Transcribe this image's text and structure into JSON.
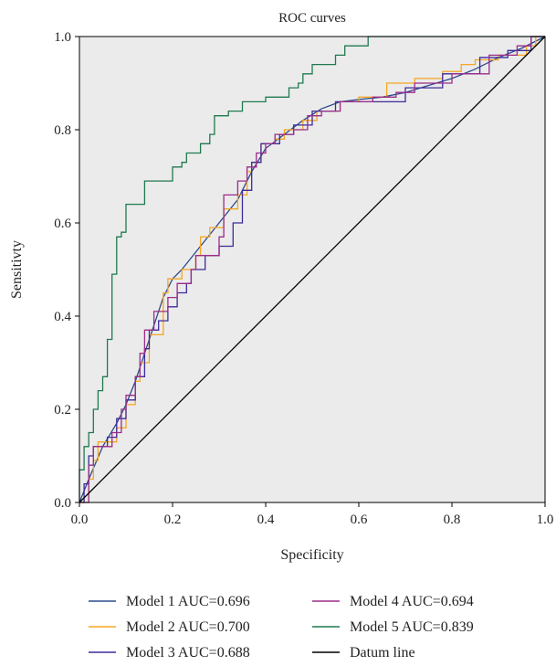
{
  "chart_data": {
    "type": "line",
    "title": "ROC curves",
    "xlabel": "Specificity",
    "ylabel": "Sensitivty",
    "xlim": [
      0.0,
      1.0
    ],
    "ylim": [
      0.0,
      1.0
    ],
    "xticks": [
      "0.0",
      "0.2",
      "0.4",
      "0.6",
      "0.8",
      "1.0"
    ],
    "yticks": [
      "0.0",
      "0.2",
      "0.4",
      "0.6",
      "0.8",
      "1.0"
    ],
    "grid": false,
    "plot_background": "#ebebeb",
    "legend_position": "bottom",
    "series": [
      {
        "name": "Model 1 AUC=0.696",
        "color": "#2b4a8c",
        "step": false,
        "points": [
          [
            0,
            0
          ],
          [
            0.02,
            0.05
          ],
          [
            0.05,
            0.12
          ],
          [
            0.08,
            0.17
          ],
          [
            0.1,
            0.21
          ],
          [
            0.12,
            0.26
          ],
          [
            0.14,
            0.32
          ],
          [
            0.16,
            0.38
          ],
          [
            0.18,
            0.44
          ],
          [
            0.2,
            0.48
          ],
          [
            0.22,
            0.5
          ],
          [
            0.26,
            0.55
          ],
          [
            0.3,
            0.6
          ],
          [
            0.34,
            0.65
          ],
          [
            0.37,
            0.71
          ],
          [
            0.4,
            0.76
          ],
          [
            0.44,
            0.79
          ],
          [
            0.48,
            0.82
          ],
          [
            0.52,
            0.845
          ],
          [
            0.56,
            0.86
          ],
          [
            0.6,
            0.865
          ],
          [
            0.65,
            0.87
          ],
          [
            0.7,
            0.88
          ],
          [
            0.75,
            0.895
          ],
          [
            0.8,
            0.91
          ],
          [
            0.85,
            0.93
          ],
          [
            0.9,
            0.955
          ],
          [
            0.95,
            0.975
          ],
          [
            1,
            1
          ]
        ]
      },
      {
        "name": "Model 2 AUC=0.700",
        "color": "#f5a623",
        "step": true,
        "points": [
          [
            0,
            0
          ],
          [
            0.02,
            0
          ],
          [
            0.02,
            0.05
          ],
          [
            0.03,
            0.05
          ],
          [
            0.03,
            0.09
          ],
          [
            0.04,
            0.09
          ],
          [
            0.04,
            0.13
          ],
          [
            0.08,
            0.13
          ],
          [
            0.08,
            0.16
          ],
          [
            0.1,
            0.16
          ],
          [
            0.1,
            0.21
          ],
          [
            0.12,
            0.21
          ],
          [
            0.12,
            0.26
          ],
          [
            0.13,
            0.26
          ],
          [
            0.13,
            0.3
          ],
          [
            0.15,
            0.3
          ],
          [
            0.15,
            0.36
          ],
          [
            0.18,
            0.36
          ],
          [
            0.18,
            0.45
          ],
          [
            0.19,
            0.45
          ],
          [
            0.19,
            0.48
          ],
          [
            0.22,
            0.48
          ],
          [
            0.22,
            0.5
          ],
          [
            0.25,
            0.5
          ],
          [
            0.25,
            0.53
          ],
          [
            0.26,
            0.53
          ],
          [
            0.26,
            0.57
          ],
          [
            0.28,
            0.57
          ],
          [
            0.28,
            0.59
          ],
          [
            0.31,
            0.59
          ],
          [
            0.31,
            0.63
          ],
          [
            0.34,
            0.63
          ],
          [
            0.34,
            0.66
          ],
          [
            0.36,
            0.66
          ],
          [
            0.36,
            0.71
          ],
          [
            0.37,
            0.71
          ],
          [
            0.37,
            0.73
          ],
          [
            0.39,
            0.73
          ],
          [
            0.39,
            0.77
          ],
          [
            0.42,
            0.77
          ],
          [
            0.42,
            0.78
          ],
          [
            0.44,
            0.78
          ],
          [
            0.44,
            0.8
          ],
          [
            0.48,
            0.8
          ],
          [
            0.48,
            0.82
          ],
          [
            0.51,
            0.82
          ],
          [
            0.51,
            0.84
          ],
          [
            0.56,
            0.84
          ],
          [
            0.56,
            0.86
          ],
          [
            0.6,
            0.86
          ],
          [
            0.6,
            0.87
          ],
          [
            0.66,
            0.87
          ],
          [
            0.66,
            0.9
          ],
          [
            0.72,
            0.9
          ],
          [
            0.72,
            0.91
          ],
          [
            0.78,
            0.91
          ],
          [
            0.78,
            0.925
          ],
          [
            0.82,
            0.925
          ],
          [
            0.82,
            0.94
          ],
          [
            0.85,
            0.94
          ],
          [
            0.85,
            0.95
          ],
          [
            0.9,
            0.95
          ],
          [
            0.9,
            0.96
          ],
          [
            0.96,
            0.96
          ],
          [
            0.96,
            0.98
          ],
          [
            0.98,
            0.98
          ],
          [
            0.98,
            1
          ],
          [
            1,
            1
          ]
        ]
      },
      {
        "name": "Model 3 AUC=0.688",
        "color": "#3d2b9c",
        "step": true,
        "points": [
          [
            0,
            0
          ],
          [
            0.01,
            0
          ],
          [
            0.01,
            0.04
          ],
          [
            0.02,
            0.04
          ],
          [
            0.02,
            0.1
          ],
          [
            0.03,
            0.1
          ],
          [
            0.03,
            0.12
          ],
          [
            0.06,
            0.12
          ],
          [
            0.06,
            0.14
          ],
          [
            0.08,
            0.14
          ],
          [
            0.08,
            0.18
          ],
          [
            0.1,
            0.18
          ],
          [
            0.1,
            0.22
          ],
          [
            0.12,
            0.22
          ],
          [
            0.12,
            0.27
          ],
          [
            0.14,
            0.27
          ],
          [
            0.14,
            0.33
          ],
          [
            0.15,
            0.33
          ],
          [
            0.15,
            0.37
          ],
          [
            0.17,
            0.37
          ],
          [
            0.17,
            0.39
          ],
          [
            0.19,
            0.39
          ],
          [
            0.19,
            0.42
          ],
          [
            0.21,
            0.42
          ],
          [
            0.21,
            0.45
          ],
          [
            0.23,
            0.45
          ],
          [
            0.23,
            0.47
          ],
          [
            0.24,
            0.47
          ],
          [
            0.24,
            0.5
          ],
          [
            0.27,
            0.5
          ],
          [
            0.27,
            0.53
          ],
          [
            0.3,
            0.53
          ],
          [
            0.3,
            0.55
          ],
          [
            0.33,
            0.55
          ],
          [
            0.33,
            0.6
          ],
          [
            0.35,
            0.6
          ],
          [
            0.35,
            0.67
          ],
          [
            0.37,
            0.67
          ],
          [
            0.37,
            0.73
          ],
          [
            0.39,
            0.73
          ],
          [
            0.39,
            0.77
          ],
          [
            0.43,
            0.77
          ],
          [
            0.43,
            0.79
          ],
          [
            0.46,
            0.79
          ],
          [
            0.46,
            0.81
          ],
          [
            0.5,
            0.81
          ],
          [
            0.5,
            0.84
          ],
          [
            0.55,
            0.84
          ],
          [
            0.55,
            0.86
          ],
          [
            0.62,
            0.86
          ],
          [
            0.62,
            0.86
          ],
          [
            0.7,
            0.86
          ],
          [
            0.7,
            0.89
          ],
          [
            0.78,
            0.89
          ],
          [
            0.78,
            0.92
          ],
          [
            0.86,
            0.92
          ],
          [
            0.86,
            0.955
          ],
          [
            0.92,
            0.955
          ],
          [
            0.92,
            0.97
          ],
          [
            0.97,
            0.97
          ],
          [
            0.97,
            1
          ],
          [
            1,
            1
          ]
        ]
      },
      {
        "name": "Model 4 AUC=0.694",
        "color": "#9b2d8a",
        "step": true,
        "points": [
          [
            0,
            0
          ],
          [
            0.02,
            0
          ],
          [
            0.02,
            0.08
          ],
          [
            0.03,
            0.08
          ],
          [
            0.03,
            0.12
          ],
          [
            0.07,
            0.12
          ],
          [
            0.07,
            0.15
          ],
          [
            0.09,
            0.15
          ],
          [
            0.09,
            0.2
          ],
          [
            0.1,
            0.2
          ],
          [
            0.1,
            0.23
          ],
          [
            0.12,
            0.23
          ],
          [
            0.12,
            0.27
          ],
          [
            0.13,
            0.27
          ],
          [
            0.13,
            0.32
          ],
          [
            0.14,
            0.32
          ],
          [
            0.14,
            0.37
          ],
          [
            0.16,
            0.37
          ],
          [
            0.16,
            0.41
          ],
          [
            0.19,
            0.41
          ],
          [
            0.19,
            0.44
          ],
          [
            0.21,
            0.44
          ],
          [
            0.21,
            0.47
          ],
          [
            0.24,
            0.47
          ],
          [
            0.24,
            0.5
          ],
          [
            0.25,
            0.5
          ],
          [
            0.25,
            0.53
          ],
          [
            0.3,
            0.53
          ],
          [
            0.3,
            0.57
          ],
          [
            0.31,
            0.57
          ],
          [
            0.31,
            0.66
          ],
          [
            0.34,
            0.66
          ],
          [
            0.34,
            0.69
          ],
          [
            0.36,
            0.69
          ],
          [
            0.36,
            0.72
          ],
          [
            0.38,
            0.72
          ],
          [
            0.38,
            0.75
          ],
          [
            0.4,
            0.75
          ],
          [
            0.4,
            0.77
          ],
          [
            0.42,
            0.77
          ],
          [
            0.42,
            0.79
          ],
          [
            0.46,
            0.79
          ],
          [
            0.46,
            0.8
          ],
          [
            0.49,
            0.8
          ],
          [
            0.49,
            0.83
          ],
          [
            0.52,
            0.83
          ],
          [
            0.52,
            0.84
          ],
          [
            0.56,
            0.84
          ],
          [
            0.56,
            0.86
          ],
          [
            0.63,
            0.86
          ],
          [
            0.63,
            0.87
          ],
          [
            0.68,
            0.87
          ],
          [
            0.68,
            0.88
          ],
          [
            0.72,
            0.88
          ],
          [
            0.72,
            0.9
          ],
          [
            0.8,
            0.9
          ],
          [
            0.8,
            0.92
          ],
          [
            0.88,
            0.92
          ],
          [
            0.88,
            0.96
          ],
          [
            0.94,
            0.96
          ],
          [
            0.94,
            0.98
          ],
          [
            0.97,
            0.98
          ],
          [
            0.97,
            1
          ],
          [
            1,
            1
          ]
        ]
      },
      {
        "name": "Model 5 AUC=0.839",
        "color": "#1f7a4f",
        "step": true,
        "points": [
          [
            0,
            0
          ],
          [
            0,
            0.07
          ],
          [
            0.01,
            0.07
          ],
          [
            0.01,
            0.12
          ],
          [
            0.02,
            0.12
          ],
          [
            0.02,
            0.15
          ],
          [
            0.03,
            0.15
          ],
          [
            0.03,
            0.2
          ],
          [
            0.04,
            0.2
          ],
          [
            0.04,
            0.24
          ],
          [
            0.05,
            0.24
          ],
          [
            0.05,
            0.27
          ],
          [
            0.06,
            0.27
          ],
          [
            0.06,
            0.35
          ],
          [
            0.07,
            0.35
          ],
          [
            0.07,
            0.49
          ],
          [
            0.08,
            0.49
          ],
          [
            0.08,
            0.57
          ],
          [
            0.09,
            0.57
          ],
          [
            0.09,
            0.58
          ],
          [
            0.1,
            0.58
          ],
          [
            0.1,
            0.64
          ],
          [
            0.14,
            0.64
          ],
          [
            0.14,
            0.69
          ],
          [
            0.2,
            0.69
          ],
          [
            0.2,
            0.72
          ],
          [
            0.22,
            0.72
          ],
          [
            0.22,
            0.73
          ],
          [
            0.23,
            0.73
          ],
          [
            0.23,
            0.75
          ],
          [
            0.26,
            0.75
          ],
          [
            0.26,
            0.77
          ],
          [
            0.28,
            0.77
          ],
          [
            0.28,
            0.79
          ],
          [
            0.29,
            0.79
          ],
          [
            0.29,
            0.83
          ],
          [
            0.32,
            0.83
          ],
          [
            0.32,
            0.84
          ],
          [
            0.35,
            0.84
          ],
          [
            0.35,
            0.86
          ],
          [
            0.4,
            0.86
          ],
          [
            0.4,
            0.87
          ],
          [
            0.45,
            0.87
          ],
          [
            0.45,
            0.89
          ],
          [
            0.47,
            0.89
          ],
          [
            0.47,
            0.9
          ],
          [
            0.48,
            0.9
          ],
          [
            0.48,
            0.92
          ],
          [
            0.5,
            0.92
          ],
          [
            0.5,
            0.94
          ],
          [
            0.55,
            0.94
          ],
          [
            0.55,
            0.96
          ],
          [
            0.57,
            0.96
          ],
          [
            0.57,
            0.98
          ],
          [
            0.62,
            0.98
          ],
          [
            0.62,
            1
          ],
          [
            1,
            1
          ]
        ]
      },
      {
        "name": "Datum line",
        "color": "#000000",
        "step": false,
        "points": [
          [
            0,
            0
          ],
          [
            1,
            1
          ]
        ]
      }
    ]
  }
}
